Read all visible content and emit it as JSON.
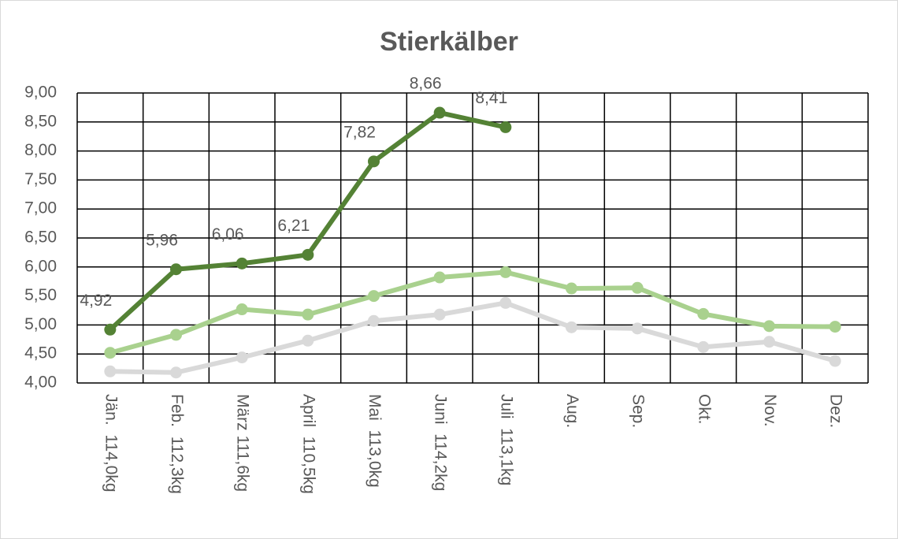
{
  "chart_data": {
    "type": "line",
    "title": "Stierkälber",
    "categories": [
      "Jän.  114,0kg",
      "Feb.  112,3kg",
      "März 111,6kg",
      "April  110,5kg",
      "Mai  113,0kg",
      "Juni  114,2kg",
      "Juli  113,1kg",
      "Aug.",
      "Sep.",
      "Okt.",
      "Nov.",
      "Dez."
    ],
    "series": [
      {
        "color": "#d9d9d9",
        "values": [
          4.2,
          4.18,
          4.44,
          4.73,
          5.07,
          5.18,
          5.38,
          4.96,
          4.94,
          4.62,
          4.71,
          4.38
        ]
      },
      {
        "color": "#a9d18e",
        "values": [
          4.52,
          4.83,
          5.27,
          5.18,
          5.5,
          5.82,
          5.91,
          5.63,
          5.64,
          5.19,
          4.98,
          4.97
        ]
      },
      {
        "color": "#548235",
        "values": [
          4.92,
          5.96,
          6.06,
          6.21,
          7.82,
          8.66,
          8.41,
          null,
          null,
          null,
          null,
          null
        ],
        "value_labels": [
          "4,92",
          "5,96",
          "6,06",
          "6,21",
          "7,82",
          "8,66",
          "8,41",
          null,
          null,
          null,
          null,
          null
        ]
      }
    ],
    "ylim": [
      4,
      9
    ],
    "yticks": [
      {
        "value": 4,
        "label": "4,00"
      },
      {
        "value": 4.5,
        "label": "4,50"
      },
      {
        "value": 5,
        "label": "5,00"
      },
      {
        "value": 5.5,
        "label": "5,50"
      },
      {
        "value": 6,
        "label": "6,00"
      },
      {
        "value": 6.5,
        "label": "6,50"
      },
      {
        "value": 7,
        "label": "7,00"
      },
      {
        "value": 7.5,
        "label": "7,50"
      },
      {
        "value": 8,
        "label": "8,00"
      },
      {
        "value": 8.5,
        "label": "8,50"
      },
      {
        "value": 9,
        "label": "9,00"
      }
    ],
    "grid": true
  }
}
